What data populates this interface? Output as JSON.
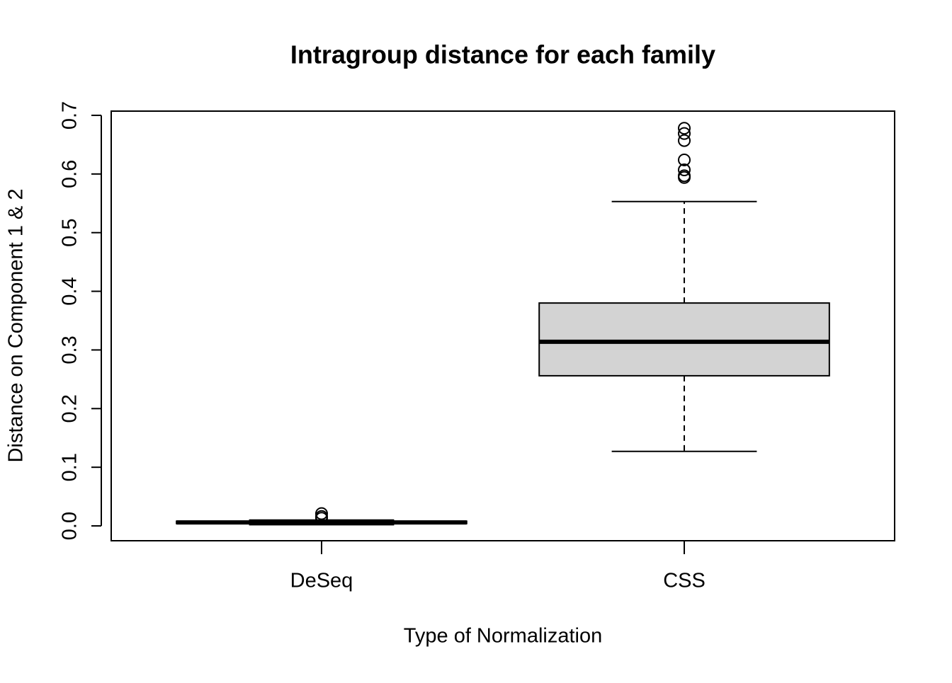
{
  "chart_data": {
    "type": "boxplot",
    "title": "Intragroup distance for each family",
    "x_label": "Type of Normalization",
    "y_label": "Distance on Component 1 & 2",
    "categories": [
      "DeSeq",
      "CSS"
    ],
    "boxes": [
      {
        "whisker_low": 0.002,
        "q1": 0.004,
        "median": 0.006,
        "q3": 0.008,
        "whisker_high": 0.01,
        "outliers": [
          0.021,
          0.016,
          0.013
        ],
        "color": "#d3d3d3"
      },
      {
        "whisker_low": 0.127,
        "q1": 0.256,
        "median": 0.314,
        "q3": 0.38,
        "whisker_high": 0.553,
        "outliers": [
          0.678,
          0.669,
          0.657,
          0.624,
          0.607,
          0.597,
          0.594
        ],
        "color": "#d3d3d3"
      }
    ],
    "ylim": [
      -0.0253,
      0.7072
    ],
    "yticks": [
      {
        "value": 0,
        "label": "0.0"
      },
      0.1,
      0.2,
      0.3,
      0.4,
      0.5,
      0.6,
      0.7
    ]
  }
}
